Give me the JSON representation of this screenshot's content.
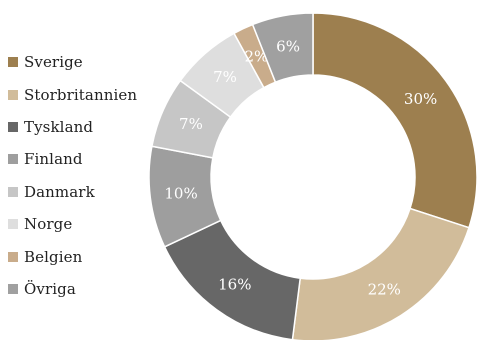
{
  "chart_data": {
    "type": "pie",
    "variant": "donut",
    "categories": [
      "Sverige",
      "Storbritannien",
      "Tyskland",
      "Finland",
      "Danmark",
      "Norge",
      "Belgien",
      "Övriga"
    ],
    "values": [
      30,
      22,
      16,
      10,
      7,
      7,
      2,
      6
    ],
    "value_labels": [
      "30%",
      "22%",
      "16%",
      "10%",
      "7%",
      "7%",
      "2%",
      "6%"
    ],
    "colors": [
      "#9d7f4f",
      "#d1bc9a",
      "#676767",
      "#9e9e9e",
      "#c6c6c6",
      "#dedede",
      "#c9ac8b",
      "#a0a0a0"
    ],
    "legend_position": "left",
    "direction": "clockwise",
    "start": "top",
    "title": ""
  }
}
